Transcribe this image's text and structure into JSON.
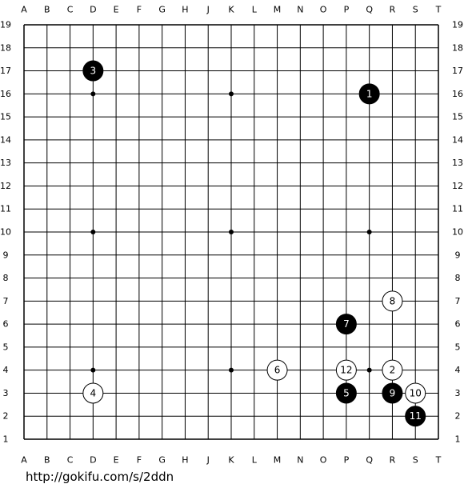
{
  "board": {
    "columns": [
      "A",
      "B",
      "C",
      "D",
      "E",
      "F",
      "G",
      "H",
      "J",
      "K",
      "L",
      "M",
      "N",
      "O",
      "P",
      "Q",
      "R",
      "S",
      "T"
    ],
    "rows": [
      "19",
      "18",
      "17",
      "16",
      "15",
      "14",
      "13",
      "12",
      "11",
      "10",
      "9",
      "8",
      "7",
      "6",
      "5",
      "4",
      "3",
      "2",
      "1"
    ],
    "stones": [
      {
        "label": "1",
        "color": "black",
        "col": "Q",
        "row": "16"
      },
      {
        "label": "2",
        "color": "white",
        "col": "R",
        "row": "4"
      },
      {
        "label": "3",
        "color": "black",
        "col": "D",
        "row": "17"
      },
      {
        "label": "4",
        "color": "white",
        "col": "D",
        "row": "3"
      },
      {
        "label": "5",
        "color": "black",
        "col": "P",
        "row": "3"
      },
      {
        "label": "6",
        "color": "white",
        "col": "M",
        "row": "4"
      },
      {
        "label": "7",
        "color": "black",
        "col": "P",
        "row": "6"
      },
      {
        "label": "8",
        "color": "white",
        "col": "R",
        "row": "7"
      },
      {
        "label": "9",
        "color": "black",
        "col": "R",
        "row": "3"
      },
      {
        "label": "10",
        "color": "white",
        "col": "S",
        "row": "3"
      },
      {
        "label": "11",
        "color": "black",
        "col": "S",
        "row": "2"
      },
      {
        "label": "12",
        "color": "white",
        "col": "P",
        "row": "4"
      }
    ]
  },
  "footer": {
    "url": "http://gokifu.com/s/2ddn"
  }
}
